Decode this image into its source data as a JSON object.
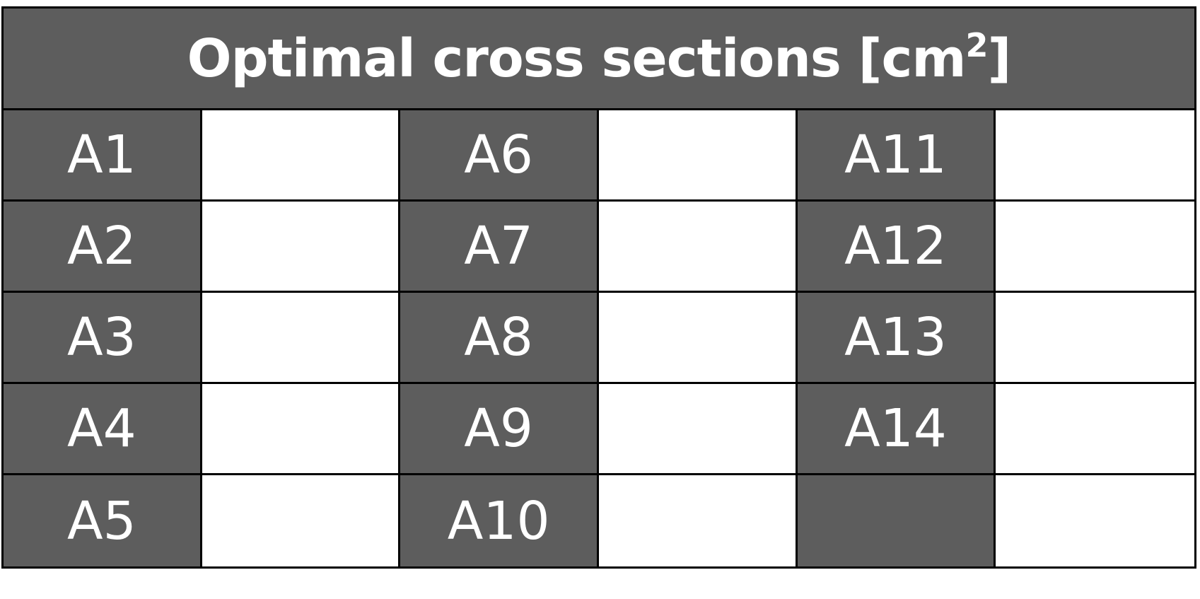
{
  "table": {
    "title_main": "Optimal cross sections [cm",
    "title_sup": "2",
    "title_end": "]",
    "rows": [
      [
        {
          "label": "A1",
          "value": ""
        },
        {
          "label": "A6",
          "value": ""
        },
        {
          "label": "A11",
          "value": ""
        }
      ],
      [
        {
          "label": "A2",
          "value": ""
        },
        {
          "label": "A7",
          "value": ""
        },
        {
          "label": "A12",
          "value": ""
        }
      ],
      [
        {
          "label": "A3",
          "value": ""
        },
        {
          "label": "A8",
          "value": ""
        },
        {
          "label": "A13",
          "value": ""
        }
      ],
      [
        {
          "label": "A4",
          "value": ""
        },
        {
          "label": "A9",
          "value": ""
        },
        {
          "label": "A14",
          "value": ""
        }
      ],
      [
        {
          "label": "A5",
          "value": ""
        },
        {
          "label": "A10",
          "value": ""
        },
        {
          "label": "",
          "value": ""
        }
      ]
    ],
    "colors": {
      "header_bg": "#5d5d5d",
      "header_text": "#ffffff",
      "border": "#000000",
      "value_bg": "#ffffff"
    }
  }
}
